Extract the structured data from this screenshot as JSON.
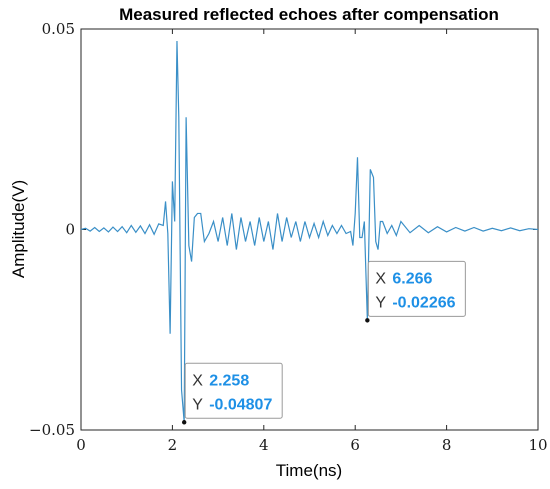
{
  "chart_data": {
    "type": "line",
    "title": "Measured reflected echoes after compensation",
    "xlabel": "Time(ns)",
    "ylabel": "Amplitude(V)",
    "xlim": [
      0,
      10
    ],
    "ylim": [
      -0.05,
      0.05
    ],
    "x_ticks": [
      0,
      2,
      4,
      6,
      8,
      10
    ],
    "x_tick_labels": [
      "0",
      "2",
      "4",
      "6",
      "8",
      "10"
    ],
    "y_ticks": [
      -0.05,
      0,
      0.05
    ],
    "y_tick_labels": [
      "−0.05",
      "0",
      "0.05"
    ],
    "grid": false,
    "series_color": "#3a8fc7",
    "series": [
      {
        "x": [
          0,
          0.1,
          0.2,
          0.3,
          0.4,
          0.5,
          0.6,
          0.7,
          0.8,
          0.9,
          1.0,
          1.1,
          1.2,
          1.3,
          1.4,
          1.5,
          1.6,
          1.7,
          1.8,
          1.85,
          1.9,
          1.95,
          2.0,
          2.05,
          2.1,
          2.14,
          2.2,
          2.258,
          2.3,
          2.36,
          2.42,
          2.48,
          2.55,
          2.62,
          2.7,
          2.8,
          2.9,
          3.0,
          3.1,
          3.2,
          3.3,
          3.4,
          3.5,
          3.6,
          3.7,
          3.8,
          3.9,
          4.0,
          4.1,
          4.2,
          4.3,
          4.4,
          4.5,
          4.6,
          4.7,
          4.8,
          4.9,
          5.0,
          5.1,
          5.2,
          5.3,
          5.4,
          5.5,
          5.6,
          5.7,
          5.8,
          5.9,
          5.95,
          6.0,
          6.05,
          6.1,
          6.15,
          6.2,
          6.266,
          6.33,
          6.4,
          6.45,
          6.5,
          6.55,
          6.6,
          6.7,
          6.8,
          6.9,
          7.0,
          7.2,
          7.4,
          7.6,
          7.8,
          8.0,
          8.2,
          8.4,
          8.6,
          8.8,
          9.0,
          9.2,
          9.4,
          9.6,
          9.8,
          10.0
        ],
        "y": [
          0,
          0.0003,
          -0.0004,
          0.0005,
          -0.0005,
          0.0004,
          -0.0006,
          0.0006,
          -0.0005,
          0.0007,
          -0.0008,
          0.001,
          -0.0007,
          0.0009,
          -0.001,
          0.0012,
          -0.0012,
          0.0014,
          0.001,
          0.007,
          -0.001,
          -0.026,
          0.012,
          0.002,
          0.047,
          0.028,
          -0.04,
          -0.04807,
          0.028,
          -0.004,
          -0.008,
          0.003,
          0.004,
          0.004,
          -0.003,
          -0.001,
          0.002,
          -0.003,
          0.003,
          -0.004,
          0.004,
          -0.005,
          0.003,
          -0.003,
          0.002,
          -0.004,
          0.003,
          -0.003,
          0.002,
          -0.005,
          0.004,
          -0.003,
          0.003,
          -0.002,
          0.002,
          -0.003,
          0.002,
          -0.002,
          0.0015,
          -0.002,
          0.002,
          -0.0015,
          0.001,
          -0.001,
          0.001,
          -0.001,
          -0.0005,
          -0.004,
          0.004,
          0.018,
          -0.002,
          -0.002,
          0.002,
          -0.02266,
          0.015,
          0.013,
          -0.003,
          -0.005,
          0.002,
          0.002,
          -0.001,
          0.001,
          -0.0015,
          0.002,
          -0.0008,
          0.001,
          -0.0008,
          0.0007,
          -0.0006,
          0.0005,
          -0.0004,
          0.0005,
          -0.0004,
          0.0003,
          -0.0003,
          0.0004,
          -0.0003,
          0.0002,
          0
        ]
      }
    ],
    "datatips": [
      {
        "x_label": "X",
        "y_label": "Y",
        "x": "2.258",
        "y": "-0.04807",
        "px": 2.258,
        "py": -0.04807
      },
      {
        "x_label": "X",
        "y_label": "Y",
        "x": "6.266",
        "y": "-0.02266",
        "px": 6.266,
        "py": -0.02266
      }
    ]
  }
}
